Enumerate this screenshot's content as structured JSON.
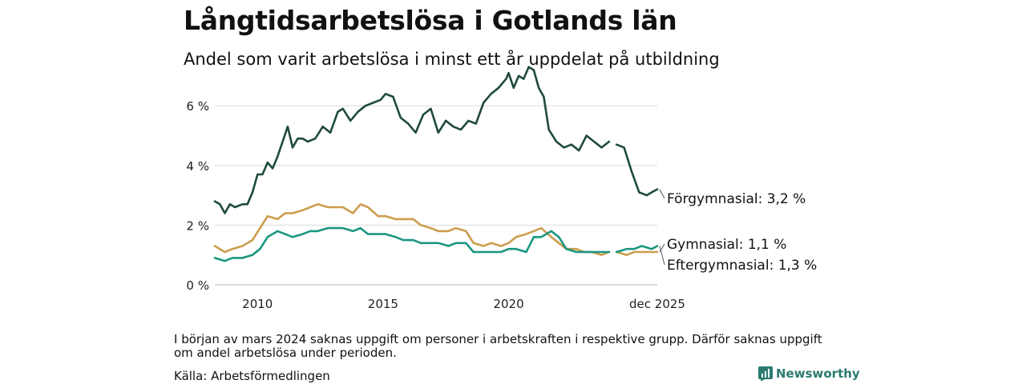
{
  "title": "Långtidsarbetslösa i Gotlands län",
  "subtitle": "Andel som varit arbetslösa i minst ett år uppdelat på utbildning",
  "note": "I början av mars 2024 saknas uppgift om personer i arbetskraften i respektive grupp. Därför saknas uppgift om andel arbetslösa under perioden.",
  "source": "Källa: Arbetsförmedlingen",
  "brand": "Newsworthy",
  "chart_data": {
    "type": "line",
    "title": "Långtidsarbetslösa i Gotlands län",
    "subtitle": "Andel som varit arbetslösa i minst ett år uppdelat på utbildning",
    "xlabel": "",
    "ylabel": "",
    "xlim": [
      2008.3,
      2025.92
    ],
    "ylim": [
      0,
      7.4
    ],
    "grid": true,
    "legend": "end-labels-right",
    "x_ticks": [
      {
        "value": 2010,
        "label": "2010"
      },
      {
        "value": 2015,
        "label": "2015"
      },
      {
        "value": 2020,
        "label": "2020"
      },
      {
        "value": 2025.92,
        "label": "dec 2025"
      }
    ],
    "y_ticks": [
      {
        "value": 0,
        "label": "0 %"
      },
      {
        "value": 2,
        "label": "2 %"
      },
      {
        "value": 4,
        "label": "4 %"
      },
      {
        "value": 6,
        "label": "6 %"
      }
    ],
    "gap": [
      2024.0,
      2024.3
    ],
    "series": [
      {
        "name": "Förgymnasial",
        "end_label": "Förgymnasial: 3,2 %",
        "color": "#1f4a3c",
        "x": [
          2008.3,
          2008.5,
          2008.7,
          2008.9,
          2009.1,
          2009.4,
          2009.6,
          2009.8,
          2010.0,
          2010.2,
          2010.4,
          2010.6,
          2010.8,
          2011.0,
          2011.2,
          2011.4,
          2011.6,
          2011.8,
          2012.0,
          2012.3,
          2012.6,
          2012.9,
          2013.2,
          2013.4,
          2013.7,
          2014.0,
          2014.3,
          2014.6,
          2014.9,
          2015.1,
          2015.4,
          2015.7,
          2016.0,
          2016.3,
          2016.6,
          2016.9,
          2017.2,
          2017.5,
          2017.8,
          2018.1,
          2018.4,
          2018.7,
          2019.0,
          2019.3,
          2019.6,
          2019.9,
          2020.0,
          2020.2,
          2020.4,
          2020.6,
          2020.8,
          2021.0,
          2021.2,
          2021.4,
          2021.6,
          2021.9,
          2022.2,
          2022.5,
          2022.8,
          2023.1,
          2023.4,
          2023.7,
          2024.0,
          2024.3,
          2024.6,
          2024.9,
          2025.2,
          2025.5,
          2025.7,
          2025.92
        ],
        "values": [
          2.8,
          2.7,
          2.4,
          2.7,
          2.6,
          2.7,
          2.7,
          3.1,
          3.7,
          3.7,
          4.1,
          3.9,
          4.3,
          4.8,
          5.3,
          4.6,
          4.9,
          4.9,
          4.8,
          4.9,
          5.3,
          5.1,
          5.8,
          5.9,
          5.5,
          5.8,
          6.0,
          6.1,
          6.2,
          6.4,
          6.3,
          5.6,
          5.4,
          5.1,
          5.7,
          5.9,
          5.1,
          5.5,
          5.3,
          5.2,
          5.5,
          5.4,
          6.1,
          6.4,
          6.6,
          6.9,
          7.1,
          6.6,
          7.0,
          6.9,
          7.3,
          7.2,
          6.6,
          6.3,
          5.2,
          4.8,
          4.6,
          4.7,
          4.5,
          5.0,
          4.8,
          4.6,
          4.8,
          4.7,
          4.6,
          3.8,
          3.1,
          3.0,
          3.1,
          3.2
        ]
      },
      {
        "name": "Gymnasial",
        "end_label": "Gymnasial: 1,1 %",
        "color": "#cc9d4e",
        "x": [
          2008.3,
          2008.7,
          2009.0,
          2009.4,
          2009.8,
          2010.1,
          2010.4,
          2010.8,
          2011.1,
          2011.4,
          2011.8,
          2012.1,
          2012.4,
          2012.8,
          2013.1,
          2013.4,
          2013.8,
          2014.1,
          2014.4,
          2014.8,
          2015.1,
          2015.5,
          2015.8,
          2016.2,
          2016.5,
          2016.9,
          2017.2,
          2017.6,
          2017.9,
          2018.3,
          2018.6,
          2019.0,
          2019.3,
          2019.7,
          2020.0,
          2020.3,
          2020.7,
          2021.0,
          2021.3,
          2021.7,
          2022.0,
          2022.3,
          2022.7,
          2023.0,
          2023.3,
          2023.7,
          2024.0,
          2024.3,
          2024.7,
          2025.0,
          2025.3,
          2025.7,
          2025.92
        ],
        "values": [
          1.3,
          1.1,
          1.2,
          1.3,
          1.5,
          1.9,
          2.3,
          2.2,
          2.4,
          2.4,
          2.5,
          2.6,
          2.7,
          2.6,
          2.6,
          2.6,
          2.4,
          2.7,
          2.6,
          2.3,
          2.3,
          2.2,
          2.2,
          2.2,
          2.0,
          1.9,
          1.8,
          1.8,
          1.9,
          1.8,
          1.4,
          1.3,
          1.4,
          1.3,
          1.4,
          1.6,
          1.7,
          1.8,
          1.9,
          1.6,
          1.4,
          1.2,
          1.2,
          1.1,
          1.1,
          1.0,
          1.1,
          1.1,
          1.0,
          1.1,
          1.1,
          1.1,
          1.1
        ]
      },
      {
        "name": "Eftergymnasial",
        "end_label": "Eftergymnasial: 1,3 %",
        "color": "#1a9681",
        "x": [
          2008.3,
          2008.7,
          2009.0,
          2009.4,
          2009.8,
          2010.1,
          2010.4,
          2010.8,
          2011.1,
          2011.4,
          2011.8,
          2012.1,
          2012.4,
          2012.8,
          2013.1,
          2013.4,
          2013.8,
          2014.1,
          2014.4,
          2014.8,
          2015.1,
          2015.5,
          2015.8,
          2016.2,
          2016.5,
          2016.9,
          2017.2,
          2017.6,
          2017.9,
          2018.3,
          2018.6,
          2019.0,
          2019.3,
          2019.7,
          2020.0,
          2020.3,
          2020.7,
          2021.0,
          2021.3,
          2021.7,
          2022.0,
          2022.3,
          2022.7,
          2023.0,
          2023.3,
          2023.7,
          2024.0,
          2024.3,
          2024.7,
          2025.0,
          2025.3,
          2025.7,
          2025.92
        ],
        "values": [
          0.9,
          0.8,
          0.9,
          0.9,
          1.0,
          1.2,
          1.6,
          1.8,
          1.7,
          1.6,
          1.7,
          1.8,
          1.8,
          1.9,
          1.9,
          1.9,
          1.8,
          1.9,
          1.7,
          1.7,
          1.7,
          1.6,
          1.5,
          1.5,
          1.4,
          1.4,
          1.4,
          1.3,
          1.4,
          1.4,
          1.1,
          1.1,
          1.1,
          1.1,
          1.2,
          1.2,
          1.1,
          1.6,
          1.6,
          1.8,
          1.6,
          1.2,
          1.1,
          1.1,
          1.1,
          1.1,
          1.1,
          1.1,
          1.2,
          1.2,
          1.3,
          1.2,
          1.3
        ]
      }
    ]
  }
}
